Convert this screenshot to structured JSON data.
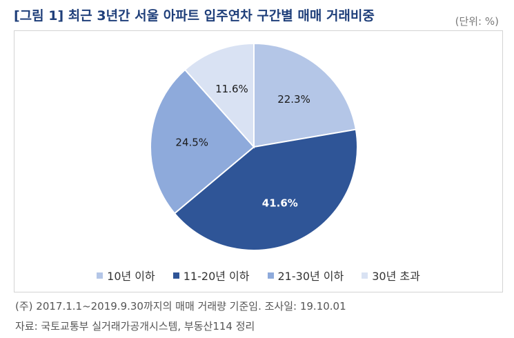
{
  "header": {
    "title": "[그림 1] 최근 3년간 서울 아파트 입주연차 구간별 매매 거래비중",
    "unit": "(단위: %)"
  },
  "chart_data": {
    "type": "pie",
    "categories": [
      "10년 이하",
      "11-20년 이하",
      "21-30년 이하",
      "30년 초과"
    ],
    "values": [
      22.3,
      41.6,
      24.5,
      11.6
    ],
    "labels": [
      "22.3%",
      "41.6%",
      "24.5%",
      "11.6%"
    ],
    "colors": [
      "#b4c6e7",
      "#2f5597",
      "#8eaadb",
      "#d9e2f3"
    ],
    "legend_position": "bottom",
    "start": "12 o'clock, clockwise"
  },
  "notes": {
    "source_note": "(주) 2017.1.1~2019.9.30까지의 매매 거래량 기준임. 조사일: 19.10.01",
    "source": "자료: 국토교통부 실거래가공개시스템, 부동산114 정리"
  }
}
